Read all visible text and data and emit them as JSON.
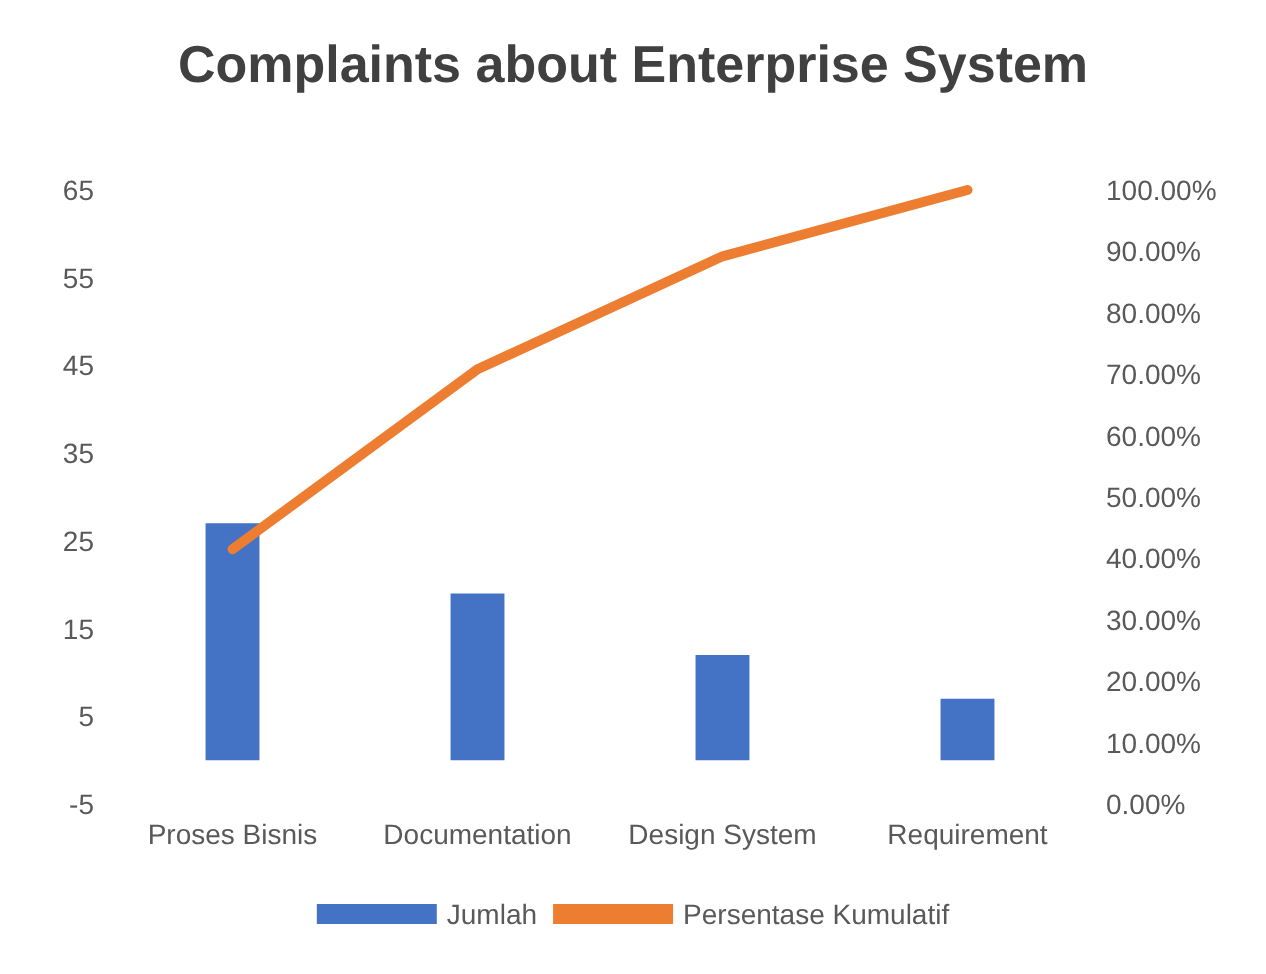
{
  "chart_data": {
    "type": "bar",
    "title": "Complaints about Enterprise System",
    "categories": [
      "Proses Bisnis",
      "Documentation",
      "Design System",
      "Requirement"
    ],
    "series": [
      {
        "name": "Jumlah",
        "color": "#4472c4",
        "values": [
          27,
          19,
          12,
          7
        ]
      },
      {
        "name": "Persentase Kumulatif",
        "type": "line",
        "axis": "y2",
        "color": "#ed7d31",
        "values": [
          41.5,
          70.8,
          89.2,
          100
        ]
      }
    ],
    "ylim": [
      -5,
      65
    ],
    "yticks": [
      -5,
      5,
      15,
      25,
      35,
      45,
      55,
      65
    ],
    "y2lim": [
      0,
      100
    ],
    "y2ticks": [
      {
        "value": 0,
        "label": "0.00%"
      },
      {
        "value": 10,
        "label": "10.00%"
      },
      {
        "value": 20,
        "label": "20.00%"
      },
      {
        "value": 30,
        "label": "30.00%"
      },
      {
        "value": 40,
        "label": "40.00%"
      },
      {
        "value": 50,
        "label": "50.00%"
      },
      {
        "value": 60,
        "label": "60.00%"
      },
      {
        "value": 70,
        "label": "70.00%"
      },
      {
        "value": 80,
        "label": "80.00%"
      },
      {
        "value": 90,
        "label": "90.00%"
      },
      {
        "value": 100,
        "label": "100.00%"
      }
    ],
    "grid": false,
    "legend": "bottom",
    "marker": "none",
    "line_style": "solid"
  }
}
